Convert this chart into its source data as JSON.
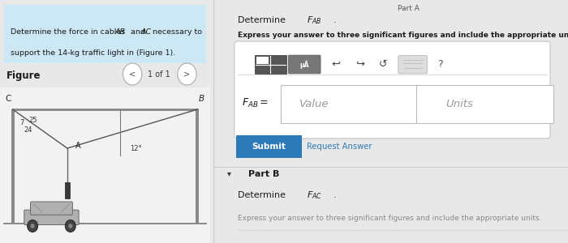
{
  "bg_color": "#e8e8e8",
  "left_panel_bg": "#e0e0e0",
  "right_panel_bg": "#ebebeb",
  "title_box_color": "#cde8f5",
  "title_text_line1": "Determine the force in cables ",
  "title_text_AB": "AB",
  "title_text_mid": " and ",
  "title_text_AC": "AC",
  "title_text_end": " necessary to",
  "title_text_line2": "support the 14-kg traffic light in (Figure 1).",
  "figure_label": "Figure",
  "nav_text": "1 of 1",
  "part_a_label": "Determine ",
  "part_a_fab": "F",
  "part_a_fab_sub": "AB",
  "part_a_express": "Express your answer to three significant figures and include the appropriate units.",
  "fab_label_main": "F",
  "fab_label_sub": "AB",
  "value_placeholder": "Value",
  "units_placeholder": "Units",
  "submit_btn": "Submit",
  "request_btn": "Request Answer",
  "part_b_arrow": "▾",
  "part_b_text": "Part B",
  "part_b_determine": "Determine ",
  "part_b_fac": "F",
  "part_b_fac_sub": "AC",
  "part_b_express": "Express your answer to three significant figures and include the appropriate units.",
  "angle_7": "7",
  "angle_25": "25",
  "angle_24": "24",
  "angle_12": "12°",
  "node_A": "A",
  "node_B": "B",
  "node_C": "C",
  "submit_color": "#2d7ab8",
  "top_right_text": "Part A",
  "fig_bg": "#f0f0f0",
  "fig_inner_bg": "#f5f5f5",
  "toolbar_bg": "#d8d8d8",
  "toolbar_border": "#bbbbbb",
  "input_bg": "#ffffff",
  "input_border": "#bbbbbb"
}
